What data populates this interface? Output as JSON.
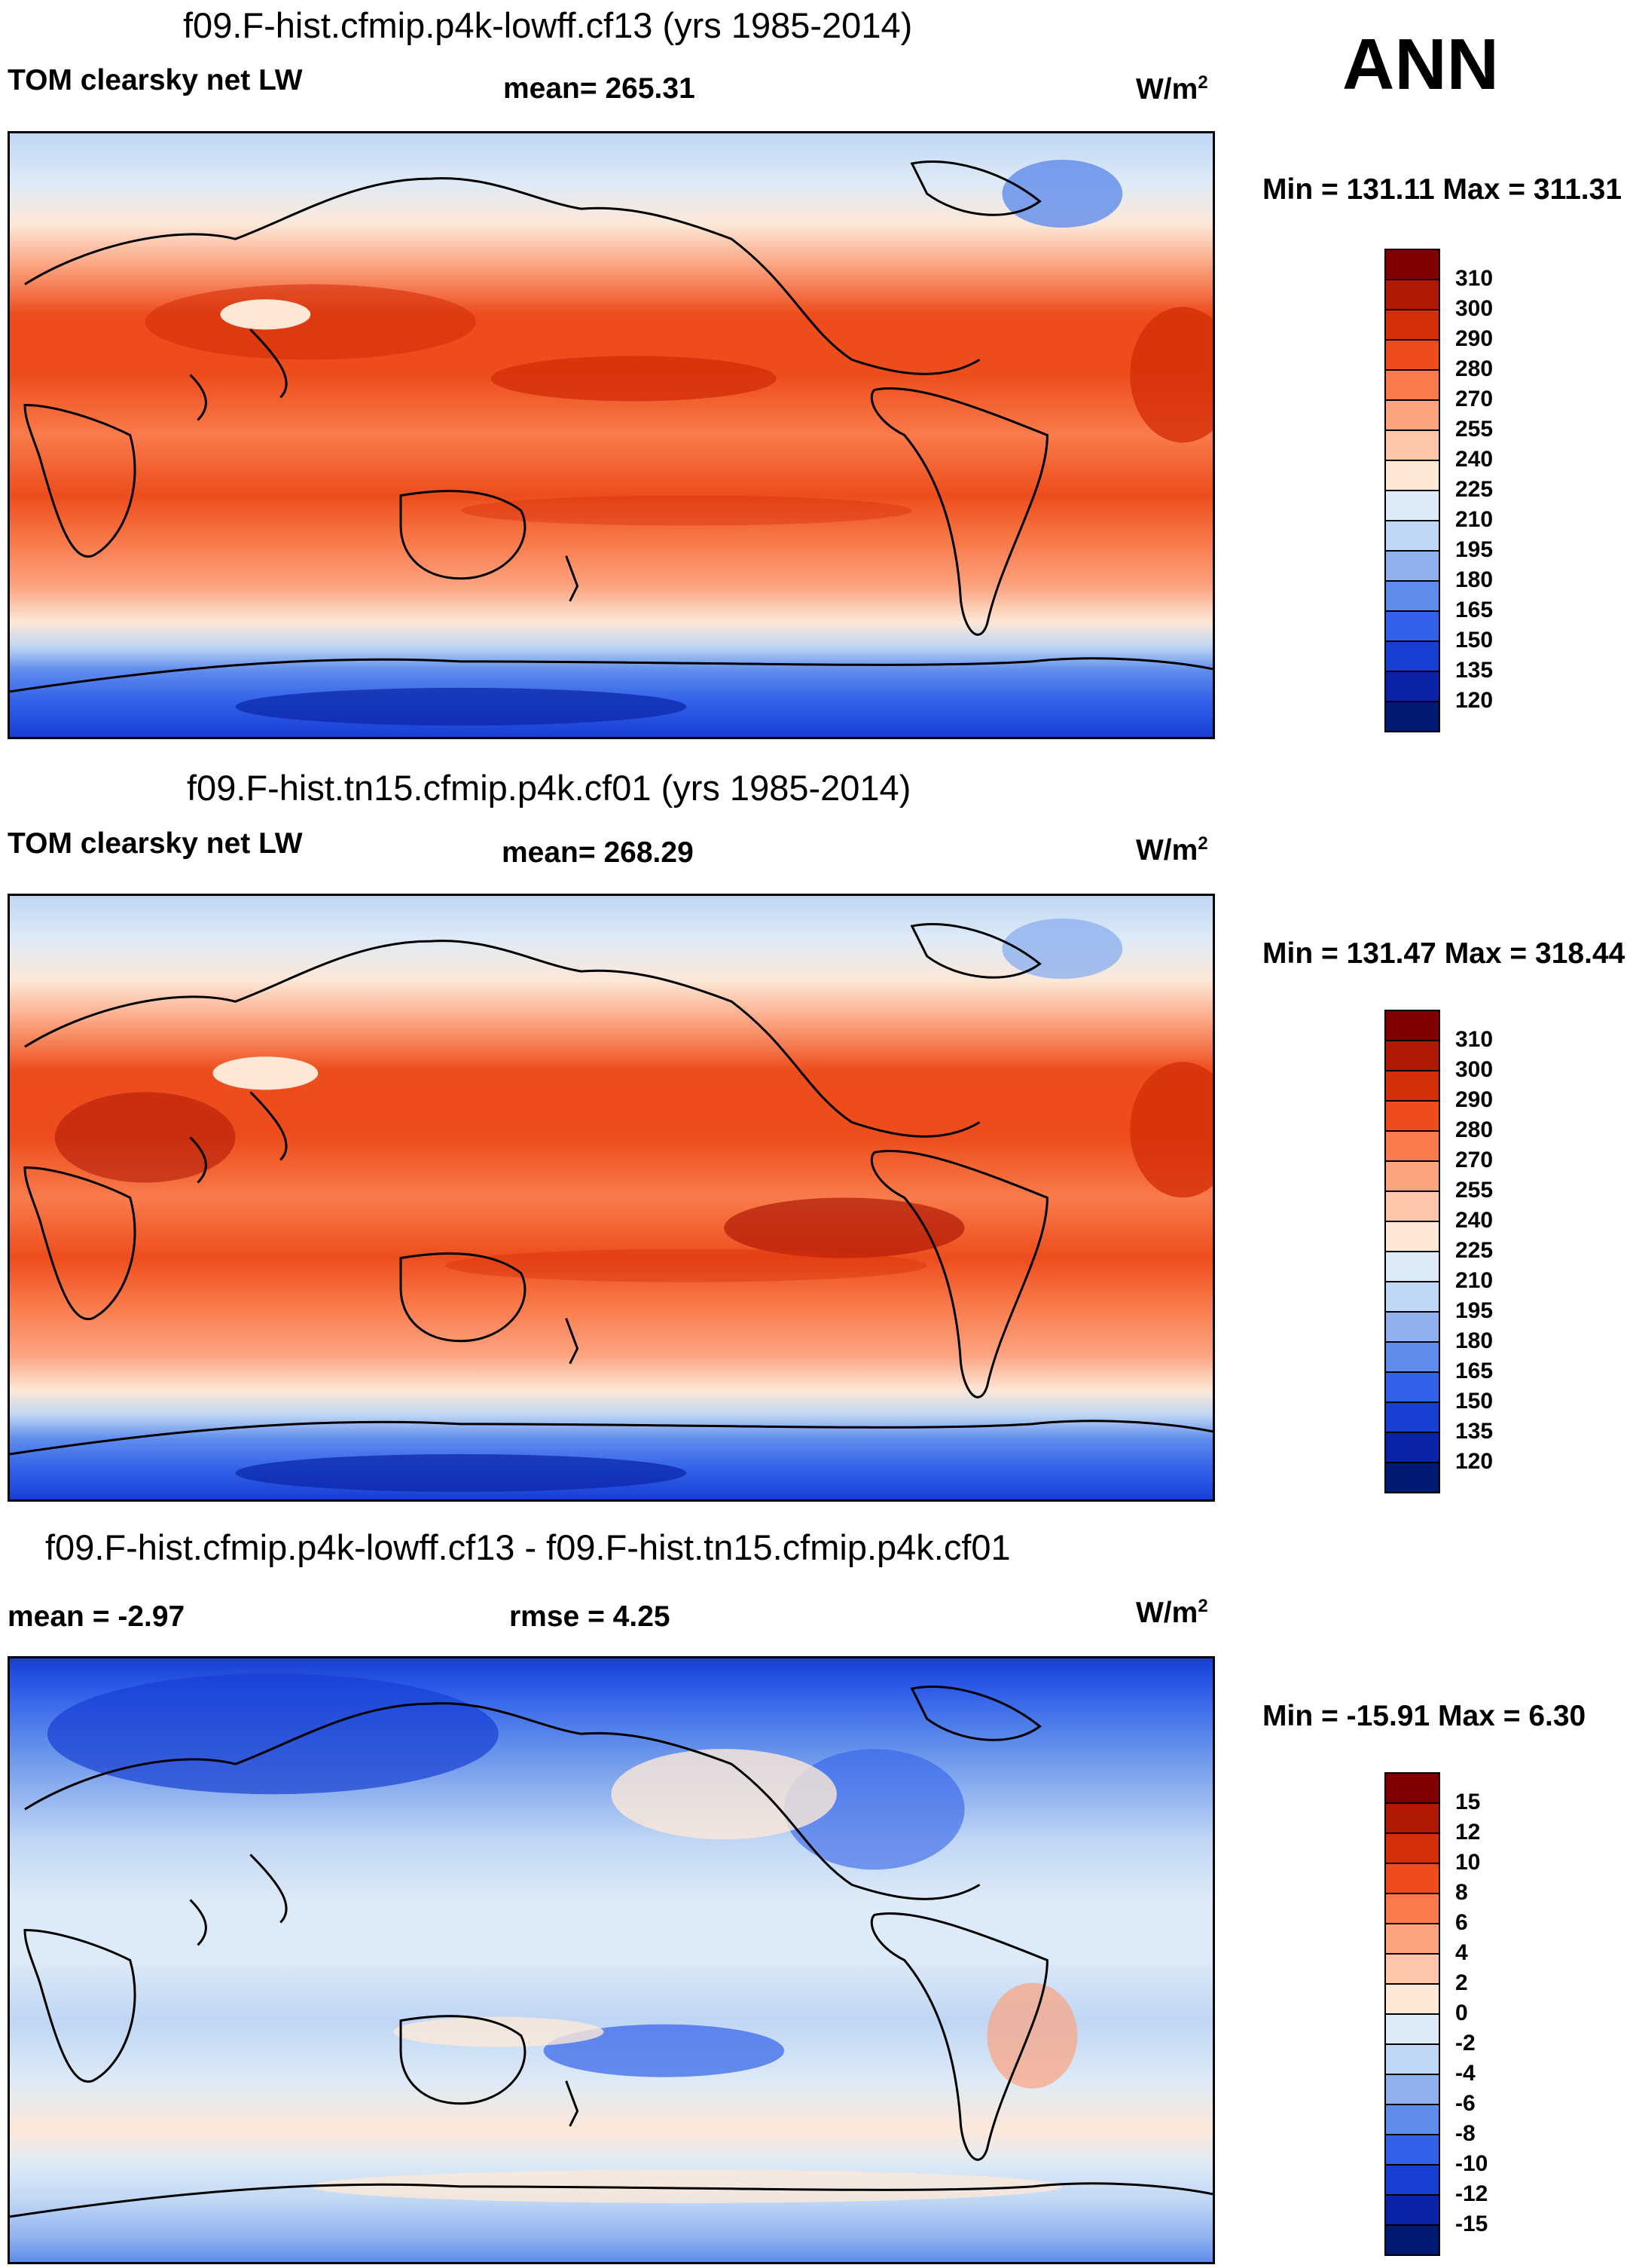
{
  "season": "ANN",
  "units_base": "W/m",
  "units_exp": "2",
  "panels": [
    {
      "title": "f09.F-hist.cfmip.p4k-lowff.cf13 (yrs 1985-2014)",
      "variable": "TOM clearsky net LW",
      "stat": "mean= 265.31",
      "minmax": "Min = 131.11 Max = 311.31"
    },
    {
      "title": "f09.F-hist.tn15.cfmip.p4k.cf01 (yrs 1985-2014)",
      "variable": "TOM clearsky net LW",
      "stat": "mean= 268.29",
      "minmax": "Min = 131.47 Max = 318.44"
    },
    {
      "title": "f09.F-hist.cfmip.p4k-lowff.cf13 - f09.F-hist.tn15.cfmip.p4k.cf01",
      "variable": "mean =  -2.97",
      "stat": "rmse =   4.25",
      "minmax": "Min = -15.91 Max =   6.30"
    }
  ],
  "colorbars": {
    "absolute": {
      "ticks": [
        "310",
        "300",
        "290",
        "280",
        "270",
        "255",
        "240",
        "225",
        "210",
        "195",
        "180",
        "165",
        "150",
        "135",
        "120"
      ],
      "colors": [
        "#800000",
        "#b01a05",
        "#d42e0a",
        "#ed4d1c",
        "#f97b4c",
        "#fca37f",
        "#fdc6ab",
        "#fde8d8",
        "#ddeaf7",
        "#bfd6f4",
        "#8fb1ef",
        "#5f8ceb",
        "#3261ea",
        "#173fd3",
        "#0a23a6",
        "#001a72"
      ]
    },
    "difference": {
      "ticks": [
        "15",
        "12",
        "10",
        "8",
        "6",
        "4",
        "2",
        "0",
        "-2",
        "-4",
        "-6",
        "-8",
        "-10",
        "-12",
        "-15"
      ],
      "colors": [
        "#800000",
        "#b01a05",
        "#d42e0a",
        "#ed4d1c",
        "#f97b4c",
        "#fca37f",
        "#fdc6ab",
        "#fde8d8",
        "#ddeaf7",
        "#bfd6f4",
        "#8fb1ef",
        "#5f8ceb",
        "#3261ea",
        "#173fd3",
        "#0a23a6",
        "#001a72"
      ]
    }
  }
}
